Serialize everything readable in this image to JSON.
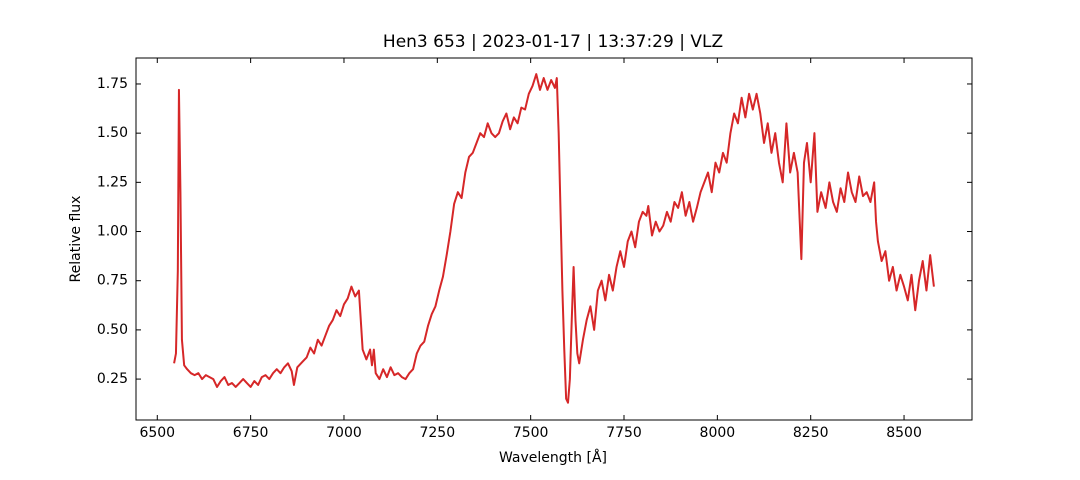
{
  "chart_data": {
    "type": "line",
    "title": "Hen3 653 | 2023-01-17 | 13:37:29 | VLZ",
    "x_label": "Wavelength [Å]",
    "y_label": "Relative flux",
    "xlim": [
      6443,
      8682
    ],
    "ylim": [
      0.042,
      1.882
    ],
    "xticks": [
      6500,
      6750,
      7000,
      7250,
      7500,
      7750,
      8000,
      8250,
      8500
    ],
    "yticks": [
      0.25,
      {
        "value": 0.5,
        "label": "0.50"
      },
      0.75,
      {
        "value": 1.0,
        "label": "1.00"
      },
      1.25,
      {
        "value": 1.5,
        "label": "1.50"
      },
      1.75
    ],
    "grid": false,
    "x": [
      6545,
      6550,
      6555,
      6558,
      6562,
      6566,
      6572,
      6580,
      6590,
      6600,
      6610,
      6620,
      6630,
      6640,
      6650,
      6660,
      6670,
      6680,
      6690,
      6700,
      6710,
      6720,
      6730,
      6740,
      6750,
      6760,
      6770,
      6780,
      6790,
      6800,
      6810,
      6820,
      6830,
      6840,
      6850,
      6860,
      6866,
      6875,
      6890,
      6900,
      6910,
      6920,
      6930,
      6940,
      6950,
      6960,
      6970,
      6980,
      6990,
      7000,
      7010,
      7020,
      7030,
      7040,
      7045,
      7050,
      7060,
      7070,
      7075,
      7080,
      7085,
      7095,
      7105,
      7115,
      7125,
      7135,
      7145,
      7155,
      7165,
      7175,
      7185,
      7195,
      7205,
      7215,
      7225,
      7235,
      7245,
      7255,
      7265,
      7275,
      7285,
      7295,
      7305,
      7315,
      7325,
      7335,
      7345,
      7355,
      7365,
      7375,
      7385,
      7395,
      7405,
      7415,
      7425,
      7435,
      7445,
      7455,
      7465,
      7475,
      7485,
      7495,
      7505,
      7515,
      7525,
      7535,
      7545,
      7555,
      7565,
      7570,
      7575,
      7580,
      7585,
      7590,
      7595,
      7600,
      7605,
      7610,
      7615,
      7620,
      7625,
      7630,
      7640,
      7650,
      7660,
      7670,
      7680,
      7690,
      7700,
      7710,
      7720,
      7730,
      7740,
      7750,
      7760,
      7770,
      7780,
      7790,
      7800,
      7810,
      7815,
      7825,
      7835,
      7845,
      7855,
      7865,
      7875,
      7885,
      7895,
      7905,
      7915,
      7925,
      7935,
      7945,
      7955,
      7965,
      7975,
      7985,
      7995,
      8005,
      8015,
      8025,
      8035,
      8045,
      8055,
      8065,
      8075,
      8085,
      8095,
      8105,
      8115,
      8125,
      8135,
      8145,
      8155,
      8165,
      8175,
      8185,
      8195,
      8205,
      8215,
      8225,
      8232,
      8240,
      8250,
      8260,
      8268,
      8278,
      8290,
      8300,
      8310,
      8320,
      8330,
      8340,
      8350,
      8360,
      8370,
      8380,
      8390,
      8400,
      8410,
      8420,
      8425,
      8430,
      8440,
      8450,
      8460,
      8470,
      8480,
      8490,
      8500,
      8510,
      8520,
      8530,
      8540,
      8550,
      8560,
      8570,
      8580
    ],
    "series": [
      {
        "color": "#d62728",
        "values": [
          0.33,
          0.38,
          0.8,
          1.72,
          1.2,
          0.45,
          0.32,
          0.3,
          0.28,
          0.27,
          0.28,
          0.25,
          0.27,
          0.26,
          0.25,
          0.21,
          0.24,
          0.26,
          0.22,
          0.23,
          0.21,
          0.23,
          0.25,
          0.23,
          0.21,
          0.24,
          0.22,
          0.26,
          0.27,
          0.25,
          0.28,
          0.3,
          0.28,
          0.31,
          0.33,
          0.29,
          0.22,
          0.31,
          0.34,
          0.36,
          0.41,
          0.38,
          0.45,
          0.42,
          0.47,
          0.52,
          0.55,
          0.6,
          0.57,
          0.63,
          0.66,
          0.72,
          0.67,
          0.7,
          0.55,
          0.4,
          0.35,
          0.4,
          0.32,
          0.4,
          0.28,
          0.25,
          0.3,
          0.26,
          0.31,
          0.27,
          0.28,
          0.26,
          0.25,
          0.28,
          0.3,
          0.38,
          0.42,
          0.44,
          0.52,
          0.58,
          0.62,
          0.7,
          0.77,
          0.88,
          1.0,
          1.14,
          1.2,
          1.17,
          1.3,
          1.38,
          1.4,
          1.45,
          1.5,
          1.48,
          1.55,
          1.5,
          1.48,
          1.5,
          1.56,
          1.6,
          1.52,
          1.58,
          1.55,
          1.63,
          1.62,
          1.7,
          1.74,
          1.8,
          1.72,
          1.78,
          1.72,
          1.77,
          1.73,
          1.78,
          1.5,
          1.1,
          0.7,
          0.4,
          0.15,
          0.13,
          0.25,
          0.55,
          0.82,
          0.55,
          0.38,
          0.33,
          0.45,
          0.55,
          0.62,
          0.5,
          0.7,
          0.75,
          0.65,
          0.78,
          0.7,
          0.82,
          0.9,
          0.82,
          0.95,
          1.0,
          0.92,
          1.05,
          1.1,
          1.08,
          1.13,
          0.98,
          1.05,
          1.0,
          1.03,
          1.1,
          1.05,
          1.15,
          1.12,
          1.2,
          1.08,
          1.15,
          1.05,
          1.12,
          1.2,
          1.25,
          1.3,
          1.2,
          1.35,
          1.3,
          1.4,
          1.35,
          1.5,
          1.6,
          1.55,
          1.68,
          1.58,
          1.7,
          1.62,
          1.7,
          1.6,
          1.45,
          1.55,
          1.4,
          1.5,
          1.35,
          1.25,
          1.55,
          1.3,
          1.4,
          1.3,
          0.86,
          1.35,
          1.45,
          1.25,
          1.5,
          1.1,
          1.2,
          1.12,
          1.25,
          1.15,
          1.1,
          1.22,
          1.15,
          1.3,
          1.2,
          1.15,
          1.28,
          1.18,
          1.2,
          1.15,
          1.25,
          1.05,
          0.95,
          0.85,
          0.9,
          0.75,
          0.82,
          0.7,
          0.78,
          0.72,
          0.65,
          0.78,
          0.6,
          0.75,
          0.85,
          0.7,
          0.88,
          0.72
        ]
      }
    ]
  }
}
